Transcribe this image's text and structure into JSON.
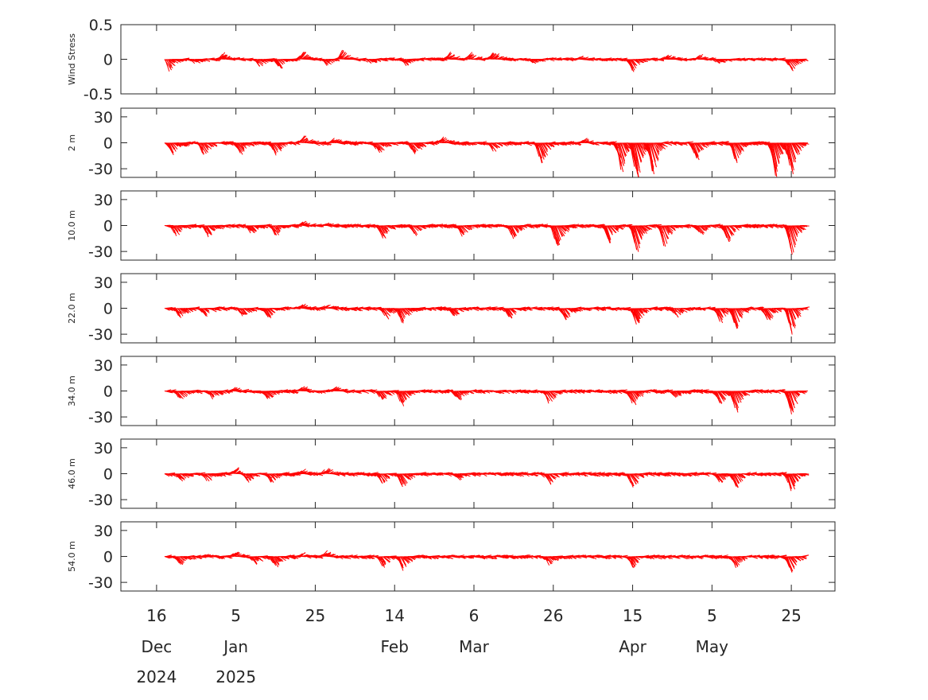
{
  "chart_data": [
    {
      "type": "area",
      "ylabel": "Wind Stress",
      "ylim": [
        -0.5,
        0.5
      ],
      "yticks": [
        "0.5",
        "0",
        "-0.5"
      ],
      "ytick_values": [
        0.5,
        0,
        -0.5
      ],
      "series_color": "#ff0000",
      "x_range": [
        "2024-12-18",
        "2025-05-28"
      ],
      "events": [
        {
          "x": "2024-12-18",
          "y": -0.17
        },
        {
          "x": "2024-12-25",
          "y": -0.05
        },
        {
          "x": "2025-01-01",
          "y": 0.08
        },
        {
          "x": "2025-01-10",
          "y": -0.09
        },
        {
          "x": "2025-01-15",
          "y": -0.12
        },
        {
          "x": "2025-01-21",
          "y": 0.1
        },
        {
          "x": "2025-01-27",
          "y": -0.07
        },
        {
          "x": "2025-01-31",
          "y": 0.13
        },
        {
          "x": "2025-02-07",
          "y": -0.05
        },
        {
          "x": "2025-02-16",
          "y": -0.07
        },
        {
          "x": "2025-02-27",
          "y": 0.09
        },
        {
          "x": "2025-03-04",
          "y": 0.09
        },
        {
          "x": "2025-03-10",
          "y": 0.1
        },
        {
          "x": "2025-03-20",
          "y": -0.04
        },
        {
          "x": "2025-04-01",
          "y": 0.04
        },
        {
          "x": "2025-04-14",
          "y": -0.16
        },
        {
          "x": "2025-04-23",
          "y": 0.06
        },
        {
          "x": "2025-05-01",
          "y": 0.05
        },
        {
          "x": "2025-05-06",
          "y": -0.05
        },
        {
          "x": "2025-05-24",
          "y": -0.16
        }
      ]
    },
    {
      "type": "area",
      "ylabel": "2 m",
      "ylim": [
        -40,
        40
      ],
      "yticks": [
        "30",
        "0",
        "-30"
      ],
      "ytick_values": [
        30,
        0,
        -30
      ],
      "series_color": "#ff0000",
      "x_range": [
        "2024-12-18",
        "2025-05-28"
      ],
      "events": [
        {
          "x": "2024-12-19",
          "y": -12
        },
        {
          "x": "2024-12-27",
          "y": -14
        },
        {
          "x": "2025-01-05",
          "y": -12
        },
        {
          "x": "2025-01-14",
          "y": -12
        },
        {
          "x": "2025-01-21",
          "y": 8
        },
        {
          "x": "2025-01-29",
          "y": 6
        },
        {
          "x": "2025-02-09",
          "y": -10
        },
        {
          "x": "2025-02-18",
          "y": -12
        },
        {
          "x": "2025-02-25",
          "y": 6
        },
        {
          "x": "2025-03-10",
          "y": -8
        },
        {
          "x": "2025-03-22",
          "y": -24
        },
        {
          "x": "2025-04-02",
          "y": 4
        },
        {
          "x": "2025-04-11",
          "y": -32
        },
        {
          "x": "2025-04-15",
          "y": -40
        },
        {
          "x": "2025-04-19",
          "y": -35
        },
        {
          "x": "2025-04-30",
          "y": -18
        },
        {
          "x": "2025-05-10",
          "y": -22
        },
        {
          "x": "2025-05-20",
          "y": -38
        },
        {
          "x": "2025-05-24",
          "y": -34
        }
      ]
    },
    {
      "type": "area",
      "ylabel": "10.0 m",
      "ylim": [
        -40,
        40
      ],
      "yticks": [
        "30",
        "0",
        "-30"
      ],
      "ytick_values": [
        30,
        0,
        -30
      ],
      "series_color": "#ff0000",
      "x_range": [
        "2024-12-18",
        "2025-05-28"
      ],
      "events": [
        {
          "x": "2024-12-20",
          "y": -10
        },
        {
          "x": "2024-12-28",
          "y": -12
        },
        {
          "x": "2025-01-08",
          "y": -8
        },
        {
          "x": "2025-01-14",
          "y": -10
        },
        {
          "x": "2025-01-21",
          "y": 4
        },
        {
          "x": "2025-01-27",
          "y": 2
        },
        {
          "x": "2025-02-10",
          "y": -14
        },
        {
          "x": "2025-02-18",
          "y": -10
        },
        {
          "x": "2025-03-02",
          "y": -10
        },
        {
          "x": "2025-03-15",
          "y": -14
        },
        {
          "x": "2025-03-26",
          "y": -24
        },
        {
          "x": "2025-04-08",
          "y": -18
        },
        {
          "x": "2025-04-15",
          "y": -30
        },
        {
          "x": "2025-04-22",
          "y": -22
        },
        {
          "x": "2025-05-01",
          "y": -10
        },
        {
          "x": "2025-05-08",
          "y": -18
        },
        {
          "x": "2025-05-24",
          "y": -32
        }
      ]
    },
    {
      "type": "area",
      "ylabel": "22.0 m",
      "ylim": [
        -40,
        40
      ],
      "yticks": [
        "30",
        "0",
        "-30"
      ],
      "ytick_values": [
        30,
        0,
        -30
      ],
      "series_color": "#ff0000",
      "x_range": [
        "2024-12-18",
        "2025-05-28"
      ],
      "events": [
        {
          "x": "2024-12-21",
          "y": -9
        },
        {
          "x": "2024-12-27",
          "y": -8
        },
        {
          "x": "2025-01-06",
          "y": -8
        },
        {
          "x": "2025-01-12",
          "y": -10
        },
        {
          "x": "2025-01-21",
          "y": 4
        },
        {
          "x": "2025-01-27",
          "y": 3
        },
        {
          "x": "2025-02-11",
          "y": -10
        },
        {
          "x": "2025-02-15",
          "y": -16
        },
        {
          "x": "2025-02-28",
          "y": -8
        },
        {
          "x": "2025-03-14",
          "y": -10
        },
        {
          "x": "2025-03-28",
          "y": -12
        },
        {
          "x": "2025-04-15",
          "y": -18
        },
        {
          "x": "2025-04-25",
          "y": -8
        },
        {
          "x": "2025-05-06",
          "y": -14
        },
        {
          "x": "2025-05-10",
          "y": -24
        },
        {
          "x": "2025-05-18",
          "y": -14
        },
        {
          "x": "2025-05-24",
          "y": -28
        },
        {
          "x": "2025-05-27",
          "y": 2
        }
      ]
    },
    {
      "type": "area",
      "ylabel": "34.0 m",
      "ylim": [
        -40,
        40
      ],
      "yticks": [
        "30",
        "0",
        "-30"
      ],
      "ytick_values": [
        30,
        0,
        -30
      ],
      "series_color": "#ff0000",
      "x_range": [
        "2024-12-18",
        "2025-05-28"
      ],
      "events": [
        {
          "x": "2024-12-21",
          "y": -8
        },
        {
          "x": "2024-12-29",
          "y": -7
        },
        {
          "x": "2025-01-04",
          "y": 3
        },
        {
          "x": "2025-01-12",
          "y": -10
        },
        {
          "x": "2025-01-21",
          "y": 4
        },
        {
          "x": "2025-01-29",
          "y": 4
        },
        {
          "x": "2025-02-10",
          "y": -10
        },
        {
          "x": "2025-02-15",
          "y": -16
        },
        {
          "x": "2025-03-01",
          "y": -8
        },
        {
          "x": "2025-03-24",
          "y": -12
        },
        {
          "x": "2025-04-14",
          "y": -16
        },
        {
          "x": "2025-04-25",
          "y": -6
        },
        {
          "x": "2025-05-06",
          "y": -14
        },
        {
          "x": "2025-05-10",
          "y": -22
        },
        {
          "x": "2025-05-24",
          "y": -24
        },
        {
          "x": "2025-05-27",
          "y": 2
        }
      ]
    },
    {
      "type": "area",
      "ylabel": "46.0 m",
      "ylim": [
        -40,
        40
      ],
      "yticks": [
        "30",
        "0",
        "-30"
      ],
      "ytick_values": [
        30,
        0,
        -30
      ],
      "series_color": "#ff0000",
      "x_range": [
        "2024-12-18",
        "2025-05-28"
      ],
      "events": [
        {
          "x": "2024-12-21",
          "y": -7
        },
        {
          "x": "2024-12-28",
          "y": -6
        },
        {
          "x": "2025-01-04",
          "y": 6
        },
        {
          "x": "2025-01-07",
          "y": -8
        },
        {
          "x": "2025-01-13",
          "y": -10
        },
        {
          "x": "2025-01-21",
          "y": 4
        },
        {
          "x": "2025-01-27",
          "y": 6
        },
        {
          "x": "2025-02-10",
          "y": -10
        },
        {
          "x": "2025-02-15",
          "y": -14
        },
        {
          "x": "2025-03-01",
          "y": -6
        },
        {
          "x": "2025-03-24",
          "y": -10
        },
        {
          "x": "2025-04-14",
          "y": -14
        },
        {
          "x": "2025-05-06",
          "y": -10
        },
        {
          "x": "2025-05-10",
          "y": -16
        },
        {
          "x": "2025-05-24",
          "y": -18
        }
      ]
    },
    {
      "type": "area",
      "ylabel": "54.0 m",
      "ylim": [
        -40,
        40
      ],
      "yticks": [
        "30",
        "0",
        "-30"
      ],
      "ytick_values": [
        30,
        0,
        -30
      ],
      "series_color": "#ff0000",
      "x_range": [
        "2024-12-18",
        "2025-05-28"
      ],
      "events": [
        {
          "x": "2024-12-21",
          "y": -8
        },
        {
          "x": "2024-12-28",
          "y": 2
        },
        {
          "x": "2025-01-04",
          "y": 6
        },
        {
          "x": "2025-01-09",
          "y": -8
        },
        {
          "x": "2025-01-14",
          "y": -10
        },
        {
          "x": "2025-01-21",
          "y": 4
        },
        {
          "x": "2025-01-27",
          "y": 6
        },
        {
          "x": "2025-02-10",
          "y": -10
        },
        {
          "x": "2025-02-15",
          "y": -14
        },
        {
          "x": "2025-03-24",
          "y": -8
        },
        {
          "x": "2025-04-14",
          "y": -12
        },
        {
          "x": "2025-05-10",
          "y": -12
        },
        {
          "x": "2025-05-24",
          "y": -17
        }
      ]
    }
  ],
  "x_axis": {
    "range": [
      "2024-12-07",
      "2025-06-05"
    ],
    "ticks": [
      {
        "date": "2024-12-16",
        "day": "16",
        "month": "Dec",
        "year": "2024"
      },
      {
        "date": "2025-01-05",
        "day": "5",
        "month": "Jan",
        "year": "2025"
      },
      {
        "date": "2025-01-25",
        "day": "25",
        "month": "",
        "year": ""
      },
      {
        "date": "2025-02-14",
        "day": "14",
        "month": "Feb",
        "year": ""
      },
      {
        "date": "2025-03-06",
        "day": "6",
        "month": "Mar",
        "year": ""
      },
      {
        "date": "2025-03-26",
        "day": "26",
        "month": "",
        "year": ""
      },
      {
        "date": "2025-04-15",
        "day": "15",
        "month": "Apr",
        "year": ""
      },
      {
        "date": "2025-05-05",
        "day": "5",
        "month": "May",
        "year": ""
      },
      {
        "date": "2025-05-25",
        "day": "25",
        "month": "",
        "year": ""
      }
    ]
  }
}
